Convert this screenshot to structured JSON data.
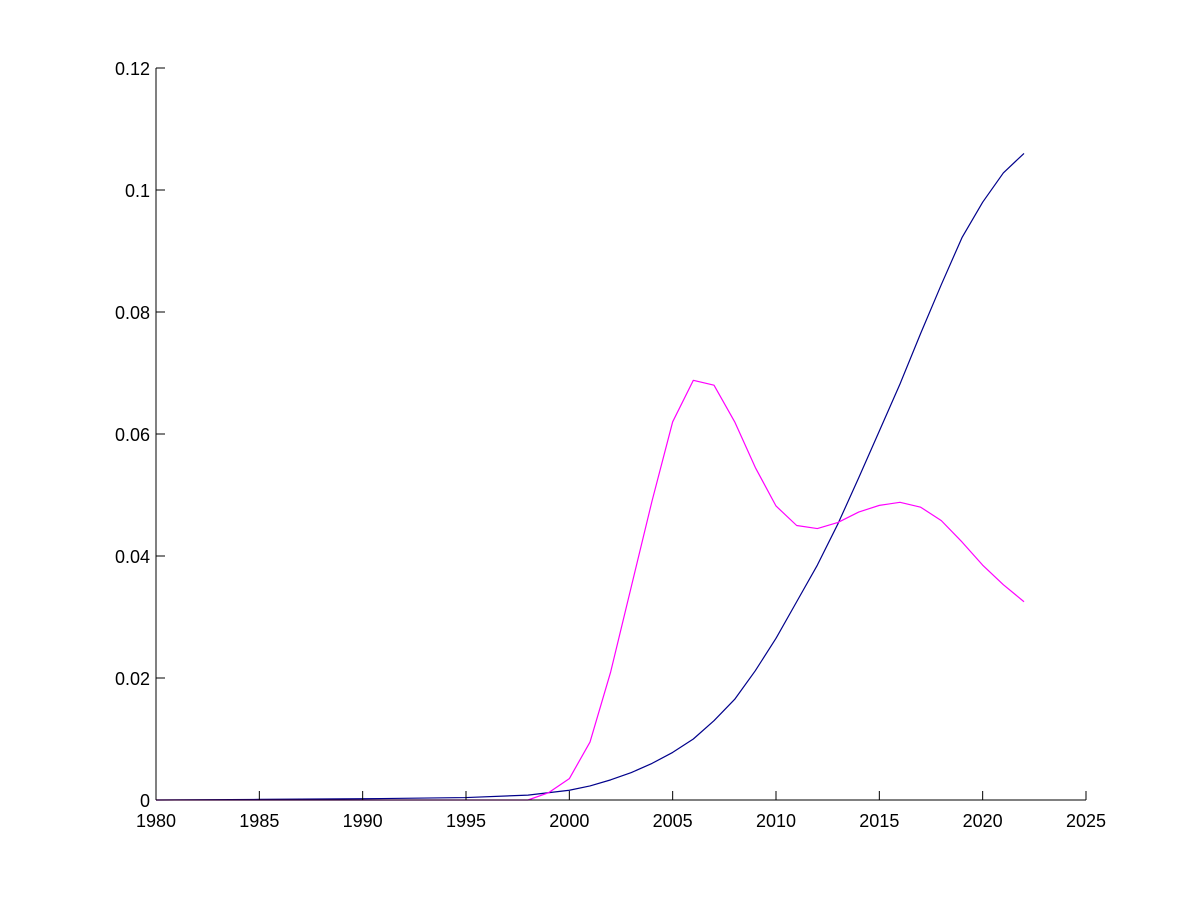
{
  "chart_data": {
    "type": "line",
    "title": "",
    "xlabel": "",
    "ylabel": "",
    "xlim": [
      1980,
      2025
    ],
    "ylim": [
      0,
      0.12
    ],
    "xticks": [
      "1980",
      "1985",
      "1990",
      "1995",
      "2000",
      "2005",
      "2010",
      "2015",
      "2020",
      "2025"
    ],
    "yticks": [
      "0",
      "0.02",
      "0.04",
      "0.06",
      "0.08",
      "0.1",
      "0.12"
    ],
    "grid": false,
    "legend": "none",
    "series": [
      {
        "color": "#00008b",
        "x": [
          1980,
          1985,
          1990,
          1995,
          1998,
          2000,
          2001,
          2002,
          2003,
          2004,
          2005,
          2006,
          2007,
          2008,
          2009,
          2010,
          2011,
          2012,
          2013,
          2014,
          2015,
          2016,
          2017,
          2018,
          2019,
          2020,
          2021,
          2022
        ],
        "y": [
          0.0,
          0.0001,
          0.0002,
          0.0004,
          0.0008,
          0.0016,
          0.0023,
          0.0033,
          0.0045,
          0.006,
          0.0078,
          0.01,
          0.013,
          0.0165,
          0.0212,
          0.0265,
          0.0325,
          0.0385,
          0.0453,
          0.0528,
          0.0605,
          0.0682,
          0.0765,
          0.0845,
          0.0922,
          0.098,
          0.1028,
          0.106
        ]
      },
      {
        "color": "#ff00ff",
        "x": [
          1980,
          1985,
          1990,
          1995,
          1998,
          1999,
          2000,
          2001,
          2002,
          2003,
          2004,
          2005,
          2006,
          2007,
          2008,
          2009,
          2010,
          2011,
          2012,
          2013,
          2014,
          2015,
          2016,
          2017,
          2018,
          2019,
          2020,
          2021,
          2022
        ],
        "y": [
          0.0,
          0.0,
          0.0,
          0.0,
          0.0,
          0.0012,
          0.0035,
          0.0095,
          0.021,
          0.035,
          0.049,
          0.062,
          0.0688,
          0.068,
          0.062,
          0.0545,
          0.0482,
          0.045,
          0.0445,
          0.0455,
          0.0472,
          0.0483,
          0.0488,
          0.048,
          0.0458,
          0.0423,
          0.0385,
          0.0353,
          0.0325
        ]
      }
    ]
  }
}
